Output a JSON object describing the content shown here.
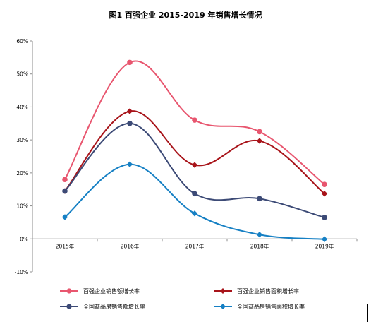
{
  "title": "图1  百强企业 2015-2019 年销售增长情况",
  "chart_data": {
    "type": "line",
    "title": "图1  百强企业 2015-2019 年销售增长情况",
    "categories": [
      "2015年",
      "2016年",
      "2017年",
      "2018年",
      "2019年"
    ],
    "ylim": [
      -0.1,
      0.6
    ],
    "yticks": [
      -0.1,
      0.0,
      0.1,
      0.2,
      0.3,
      0.4,
      0.5,
      0.6
    ],
    "ytick_labels": [
      "-10%",
      "0%",
      "10%",
      "20%",
      "30%",
      "40%",
      "50%",
      "60%"
    ],
    "grid": false,
    "legend_position": "bottom",
    "smooth": true,
    "series": [
      {
        "name": "百强企业销售额增长率",
        "marker": "circle",
        "color": "#e8566f",
        "values": [
          0.18,
          0.535,
          0.36,
          0.325,
          0.165
        ]
      },
      {
        "name": "百强企业销售面积增长率",
        "marker": "diamond",
        "color": "#a8141a",
        "values": [
          0.145,
          0.387,
          0.224,
          0.297,
          0.137
        ]
      },
      {
        "name": "全国商品房销售额增长率",
        "marker": "circle",
        "color": "#3c4a76",
        "values": [
          0.145,
          0.35,
          0.137,
          0.122,
          0.065
        ]
      },
      {
        "name": "全国商品房销售面积增长率",
        "marker": "diamond",
        "color": "#1680c4",
        "values": [
          0.066,
          0.226,
          0.077,
          0.013,
          -0.001
        ]
      }
    ]
  }
}
